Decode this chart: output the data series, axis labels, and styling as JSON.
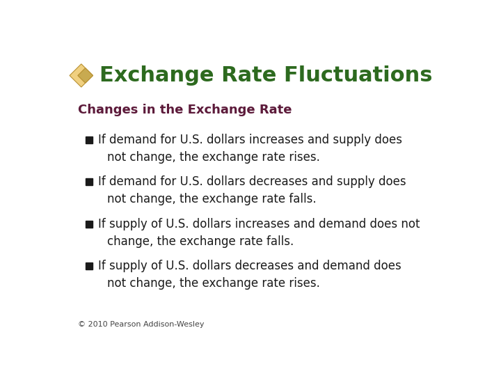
{
  "title": "Exchange Rate Fluctuations",
  "title_color": "#2d6a1f",
  "title_fontsize": 22,
  "subtitle": "Changes in the Exchange Rate",
  "subtitle_color": "#5c1a3a",
  "subtitle_fontsize": 13,
  "bullet_color": "#1a1a1a",
  "bullet_fontsize": 12,
  "bullet_line1": [
    "If demand for U.S. dollars increases and supply does",
    "If demand for U.S. dollars decreases and supply does",
    "If supply of U.S. dollars increases and demand does not",
    "If supply of U.S. dollars decreases and demand does"
  ],
  "bullet_line2": [
    "not change, the exchange rate rises.",
    "not change, the exchange rate falls.",
    "change, the exchange rate falls.",
    "not change, the exchange rate rises."
  ],
  "footer": "© 2010 Pearson Addison-Wesley",
  "footer_fontsize": 8,
  "footer_color": "#444444",
  "bg_color": "#ffffff",
  "icon_fill": "#f0d080",
  "icon_fill2": "#c8aa50",
  "icon_edge": "#b89030"
}
